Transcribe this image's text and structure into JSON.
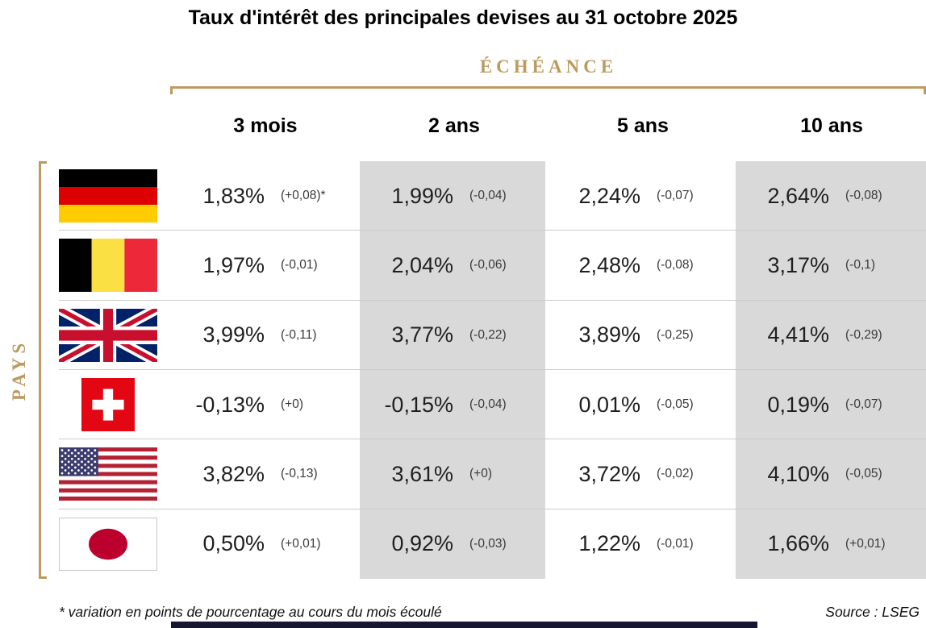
{
  "title": "Taux d'intérêt des principales devises au 31 octobre 2025",
  "axes": {
    "maturity_label": "ÉCHÉANCE",
    "country_label": "PAYS"
  },
  "columns": [
    {
      "label": "3 mois",
      "shaded": false
    },
    {
      "label": "2 ans",
      "shaded": true
    },
    {
      "label": "5 ans",
      "shaded": false
    },
    {
      "label": "10 ans",
      "shaded": true
    }
  ],
  "rows": [
    {
      "country": "Germany",
      "flag": "germany-flag",
      "cells": [
        {
          "rate": "1,83%",
          "delta": "(+0,08)*"
        },
        {
          "rate": "1,99%",
          "delta": "(-0,04)"
        },
        {
          "rate": "2,24%",
          "delta": "(-0,07)"
        },
        {
          "rate": "2,64%",
          "delta": "(-0,08)"
        }
      ]
    },
    {
      "country": "Belgium",
      "flag": "belgium-flag",
      "cells": [
        {
          "rate": "1,97%",
          "delta": "(-0,01)"
        },
        {
          "rate": "2,04%",
          "delta": "(-0,06)"
        },
        {
          "rate": "2,48%",
          "delta": "(-0,08)"
        },
        {
          "rate": "3,17%",
          "delta": "(-0,1)"
        }
      ]
    },
    {
      "country": "United Kingdom",
      "flag": "uk-flag",
      "cells": [
        {
          "rate": "3,99%",
          "delta": "(-0,11)"
        },
        {
          "rate": "3,77%",
          "delta": "(-0,22)"
        },
        {
          "rate": "3,89%",
          "delta": "(-0,25)"
        },
        {
          "rate": "4,41%",
          "delta": "(-0,29)"
        }
      ]
    },
    {
      "country": "Switzerland",
      "flag": "switzerland-flag",
      "cells": [
        {
          "rate": "-0,13%",
          "delta": "(+0)"
        },
        {
          "rate": "-0,15%",
          "delta": "(-0,04)"
        },
        {
          "rate": "0,01%",
          "delta": "(-0,05)"
        },
        {
          "rate": "0,19%",
          "delta": "(-0,07)"
        }
      ]
    },
    {
      "country": "United States",
      "flag": "usa-flag",
      "cells": [
        {
          "rate": "3,82%",
          "delta": "(-0,13)"
        },
        {
          "rate": "3,61%",
          "delta": "(+0)"
        },
        {
          "rate": "3,72%",
          "delta": "(-0,02)"
        },
        {
          "rate": "4,10%",
          "delta": "(-0,05)"
        }
      ]
    },
    {
      "country": "Japan",
      "flag": "japan-flag",
      "cells": [
        {
          "rate": "0,50%",
          "delta": "(+0,01)"
        },
        {
          "rate": "0,92%",
          "delta": "(-0,03)"
        },
        {
          "rate": "1,22%",
          "delta": "(-0,01)"
        },
        {
          "rate": "1,66%",
          "delta": "(+0,01)"
        }
      ]
    }
  ],
  "footer": {
    "note": "* variation en points de pourcentage au cours du mois écoulé",
    "source": "Source : LSEG"
  },
  "colors": {
    "accent": "#BD9A5F",
    "shaded_column": "#D9D9D9",
    "separator": "#CCCCCC",
    "bottom_bar": "#161630"
  },
  "chart_data": {
    "type": "table",
    "title": "Taux d'intérêt des principales devises au 31 octobre 2025",
    "column_axis_label": "ÉCHÉANCE",
    "row_axis_label": "PAYS",
    "columns": [
      "3 mois",
      "2 ans",
      "5 ans",
      "10 ans"
    ],
    "unit": "%",
    "rows": [
      {
        "country": "Germany",
        "rates_pct": [
          1.83,
          1.99,
          2.24,
          2.64
        ],
        "variation_pts": [
          0.08,
          -0.04,
          -0.07,
          -0.08
        ]
      },
      {
        "country": "Belgium",
        "rates_pct": [
          1.97,
          2.04,
          2.48,
          3.17
        ],
        "variation_pts": [
          -0.01,
          -0.06,
          -0.08,
          -0.1
        ]
      },
      {
        "country": "United Kingdom",
        "rates_pct": [
          3.99,
          3.77,
          3.89,
          4.41
        ],
        "variation_pts": [
          -0.11,
          -0.22,
          -0.25,
          -0.29
        ]
      },
      {
        "country": "Switzerland",
        "rates_pct": [
          -0.13,
          -0.15,
          0.01,
          0.19
        ],
        "variation_pts": [
          0,
          -0.04,
          -0.05,
          -0.07
        ]
      },
      {
        "country": "United States",
        "rates_pct": [
          3.82,
          3.61,
          3.72,
          4.1
        ],
        "variation_pts": [
          -0.13,
          0,
          -0.02,
          -0.05
        ]
      },
      {
        "country": "Japan",
        "rates_pct": [
          0.5,
          0.92,
          1.22,
          1.66
        ],
        "variation_pts": [
          0.01,
          -0.03,
          -0.01,
          0.01
        ]
      }
    ],
    "shaded_columns": [
      "2 ans",
      "10 ans"
    ],
    "footnote": "* variation en points de pourcentage au cours du mois écoulé",
    "source": "LSEG"
  }
}
